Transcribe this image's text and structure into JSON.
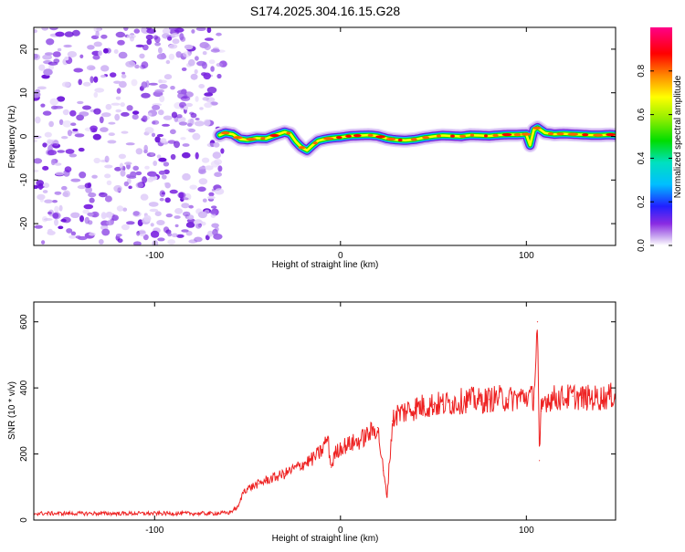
{
  "title": "S174.2025.304.16.15.G28",
  "chart_data": [
    {
      "type": "heatmap",
      "title": "S174.2025.304.16.15.G28",
      "xlabel": "Height of straight line (km)",
      "ylabel": "Frequency (Hz)",
      "xlim": [
        -165,
        148
      ],
      "ylim": [
        -25,
        25
      ],
      "xticks": [
        -100,
        0,
        100
      ],
      "yticks": [
        -20,
        -10,
        0,
        10,
        20
      ],
      "noise_region": {
        "x_start": -165,
        "x_end": -65
      },
      "signal_track": {
        "x": [
          -65,
          -62,
          -58,
          -54,
          -50,
          -45,
          -40,
          -35,
          -30,
          -27,
          -24,
          -21,
          -18,
          -15,
          -12,
          -8,
          -5,
          0,
          5,
          10,
          15,
          20,
          25,
          30,
          35,
          40,
          45,
          50,
          55,
          60,
          65,
          70,
          75,
          80,
          85,
          90,
          95,
          100,
          102,
          104,
          106,
          110,
          115,
          120,
          125,
          130,
          135,
          140,
          145,
          148
        ],
        "y": [
          0.3,
          0.8,
          0.5,
          -0.6,
          -0.8,
          -0.4,
          -0.5,
          0.3,
          1.0,
          0.6,
          -1.2,
          -2.5,
          -3.2,
          -2.0,
          -1.0,
          -0.6,
          -0.4,
          -0.2,
          0.1,
          0.2,
          0.3,
          0.1,
          -0.5,
          -0.8,
          -0.9,
          -0.7,
          -0.3,
          0.0,
          0.2,
          0.1,
          0.0,
          0.3,
          0.2,
          0.1,
          0.3,
          0.4,
          0.4,
          0.5,
          -2.0,
          1.5,
          2.0,
          0.8,
          0.5,
          0.6,
          0.5,
          0.4,
          0.3,
          0.3,
          0.4,
          0.3
        ]
      },
      "colorbar": {
        "label": "Normalized spectral amplitude",
        "range": [
          0.0,
          1.0
        ],
        "ticks": [
          0.0,
          0.2,
          0.4,
          0.6,
          0.8
        ]
      }
    },
    {
      "type": "line",
      "xlabel": "Height of straight line (km)",
      "ylabel": "SNR (10 * v/v)",
      "xlim": [
        -165,
        148
      ],
      "ylim": [
        0,
        660
      ],
      "xticks": [
        -100,
        0,
        100
      ],
      "yticks": [
        0,
        200,
        400,
        600
      ],
      "color": "#ee2222",
      "series": [
        {
          "name": "SNR",
          "x": [
            -165,
            -150,
            -130,
            -110,
            -90,
            -70,
            -60,
            -55,
            -52,
            -48,
            -44,
            -40,
            -35,
            -30,
            -25,
            -20,
            -15,
            -10,
            -7,
            -5,
            -3,
            0,
            5,
            10,
            15,
            20,
            23,
            25,
            28,
            30,
            35,
            40,
            45,
            50,
            55,
            60,
            65,
            70,
            75,
            80,
            85,
            90,
            95,
            100,
            104,
            106,
            107,
            108,
            110,
            115,
            120,
            125,
            130,
            135,
            140,
            145,
            148
          ],
          "y": [
            20,
            20,
            20,
            20,
            20,
            20,
            22,
            40,
            90,
            100,
            110,
            120,
            130,
            140,
            155,
            170,
            185,
            210,
            250,
            160,
            200,
            220,
            230,
            240,
            260,
            280,
            150,
            70,
            300,
            320,
            330,
            340,
            345,
            350,
            350,
            355,
            360,
            365,
            360,
            365,
            370,
            365,
            370,
            375,
            370,
            600,
            180,
            330,
            365,
            370,
            370,
            375,
            370,
            370,
            370,
            375,
            380
          ]
        }
      ]
    }
  ]
}
